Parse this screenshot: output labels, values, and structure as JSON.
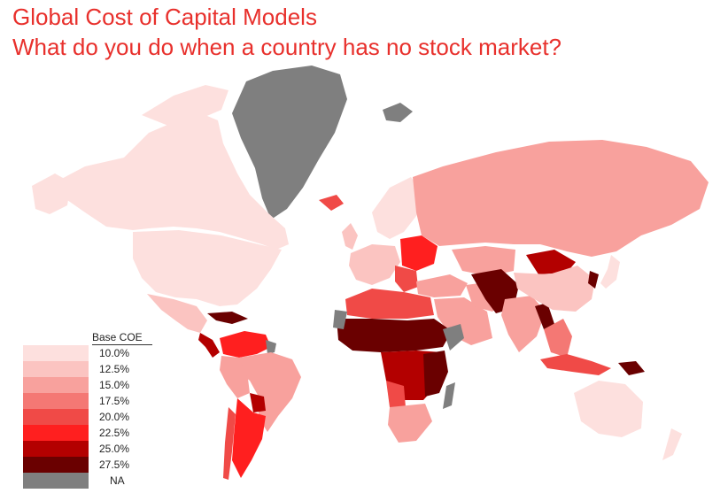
{
  "title": "Global Cost of Capital Models",
  "subtitle": "What do you do when a country has no stock market?",
  "legend": {
    "heading": "Base COE",
    "items": [
      {
        "label": "10.0%",
        "color": "#fde0de"
      },
      {
        "label": "12.5%",
        "color": "#fbc4c1"
      },
      {
        "label": "15.0%",
        "color": "#f8a19d"
      },
      {
        "label": "17.5%",
        "color": "#f47874"
      },
      {
        "label": "20.0%",
        "color": "#f04a47"
      },
      {
        "label": "22.5%",
        "color": "#ff1f1f"
      },
      {
        "label": "25.0%",
        "color": "#b30000"
      },
      {
        "label": "27.5%",
        "color": "#6a0000"
      },
      {
        "label": "NA",
        "color": "#7f7f7f"
      }
    ]
  }
}
